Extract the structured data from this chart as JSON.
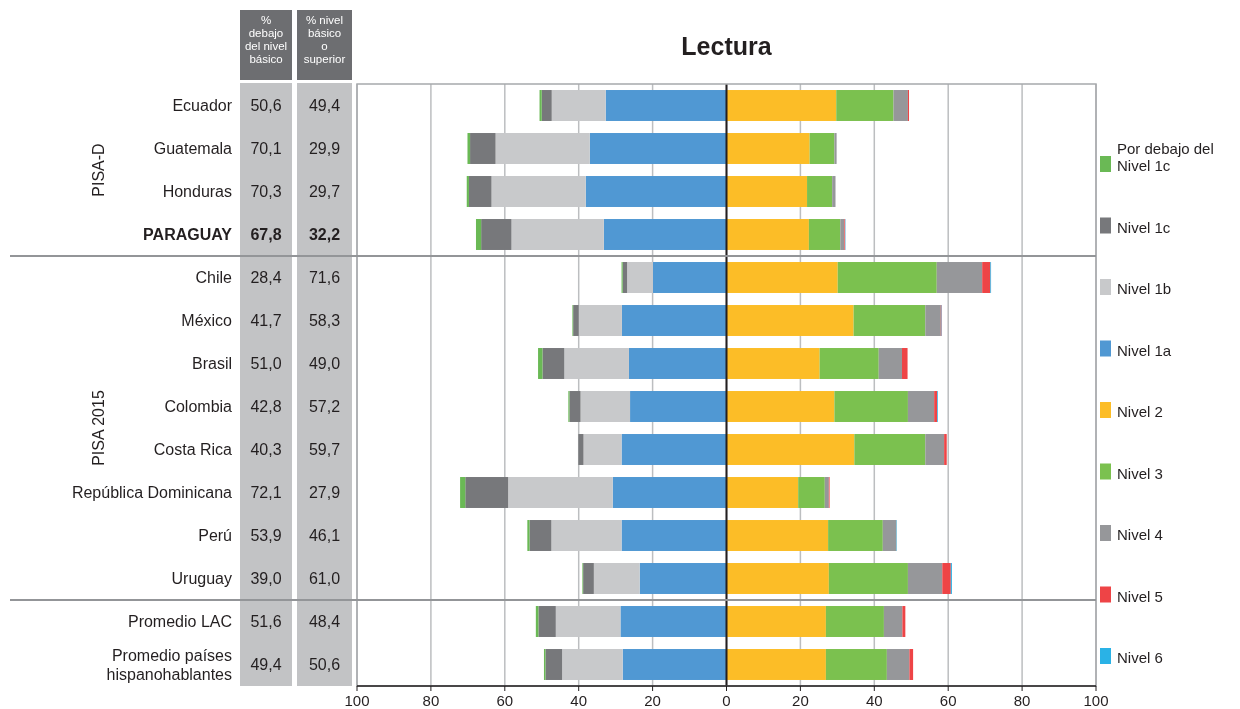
{
  "chart_data": {
    "type": "bar",
    "orientation": "horizontal",
    "stacked": true,
    "title": "Lectura",
    "categories": [
      "Ecuador",
      "Guatemala",
      "Honduras",
      "PARAGUAY",
      "Chile",
      "México",
      "Brasil",
      "Colombia",
      "Costa Rica",
      "República Dominicana",
      "Perú",
      "Uruguay",
      "Promedio LAC",
      "Promedio países hispanohablantes"
    ],
    "series": [
      {
        "name": "Nivel 1a",
        "color": "#5098d3",
        "values": [
          -32.7,
          -37.0,
          -38.1,
          -33.2,
          -19.9,
          -28.3,
          -26.4,
          -26.1,
          -28.4,
          -30.8,
          -28.4,
          -23.5,
          -28.7,
          -28.1
        ]
      },
      {
        "name": "Nivel 1b",
        "color": "#c8c9cb",
        "values": [
          -14.6,
          -25.5,
          -25.5,
          -25.0,
          -7.0,
          -11.7,
          -17.5,
          -13.4,
          -10.3,
          -28.3,
          -19.0,
          -12.4,
          -17.5,
          -16.4
        ]
      },
      {
        "name": "Nivel 1c",
        "color": "#77787b",
        "values": [
          -2.7,
          -6.9,
          -6.1,
          -8.2,
          -1.2,
          -1.5,
          -5.9,
          -3.0,
          -1.4,
          -11.6,
          -5.9,
          -2.9,
          -4.7,
          -4.5
        ]
      },
      {
        "name": "Por debajo del Nivel 1c",
        "color": "#6ab955",
        "values": [
          -0.6,
          -0.7,
          -0.6,
          -1.4,
          -0.3,
          -0.2,
          -1.2,
          -0.3,
          null,
          -1.4,
          -0.6,
          -0.2,
          -0.7,
          -0.4
        ]
      },
      {
        "name": "Nivel 2",
        "color": "#fcbd27",
        "values": [
          29.7,
          22.5,
          21.8,
          22.3,
          30.1,
          34.4,
          25.2,
          29.2,
          34.6,
          19.4,
          27.5,
          27.7,
          26.9,
          26.9
        ]
      },
      {
        "name": "Nivel 3",
        "color": "#7bc14f",
        "values": [
          15.5,
          6.7,
          6.8,
          8.5,
          26.8,
          19.4,
          16.0,
          19.9,
          19.2,
          7.2,
          14.8,
          21.4,
          15.7,
          16.5
        ]
      },
      {
        "name": "Nivel 4",
        "color": "#96979a",
        "values": [
          3.9,
          0.6,
          0.9,
          1.1,
          12.3,
          4.2,
          6.3,
          7.1,
          5.1,
          1.1,
          3.7,
          9.3,
          5.0,
          6.1
        ]
      },
      {
        "name": "Nivel 5",
        "color": "#ee4446",
        "values": [
          0.3,
          null,
          null,
          0.2,
          2.2,
          0.2,
          1.5,
          0.8,
          0.7,
          0.2,
          0.0,
          2.3,
          0.8,
          1.0
        ]
      },
      {
        "name": "Nivel 6",
        "color": "#2ab2e6",
        "values": [
          0.0,
          0.0,
          0.0,
          0.1,
          0.2,
          0.1,
          0.0,
          0.2,
          null,
          0.0,
          0.1,
          0.3,
          0.0,
          null
        ]
      }
    ],
    "totals": [
      [
        "50,6",
        "49,4"
      ],
      [
        "70,1",
        "29,9"
      ],
      [
        "70,3",
        "29,7"
      ],
      [
        "67,8",
        "32,2"
      ],
      [
        "28,4",
        "71,6"
      ],
      [
        "41,7",
        "58,3"
      ],
      [
        "51,0",
        "49,0"
      ],
      [
        "42,8",
        "57,2"
      ],
      [
        "40,3",
        "59,7"
      ],
      [
        "72,1",
        "27,9"
      ],
      [
        "53,9",
        "46,1"
      ],
      [
        "39,0",
        "61,0"
      ],
      [
        "51,6",
        "48,4"
      ],
      [
        "49,4",
        "50,6"
      ]
    ],
    "annotations": [
      "%\ndebajo\ndel nivel\nbásico",
      "% nivel\nbásico\no\nsuperior",
      "PISA-D",
      "PISA 2015"
    ],
    "xlim": [
      -100,
      100
    ],
    "xticks": [
      {
        "value": -100,
        "label": "100"
      },
      {
        "value": -80,
        "label": "80"
      },
      {
        "value": -60,
        "label": "60"
      },
      {
        "value": -40,
        "label": "40"
      },
      {
        "value": -20,
        "label": "20"
      },
      0,
      20,
      40,
      60,
      80,
      100
    ],
    "grid": "x",
    "legend": "right"
  }
}
